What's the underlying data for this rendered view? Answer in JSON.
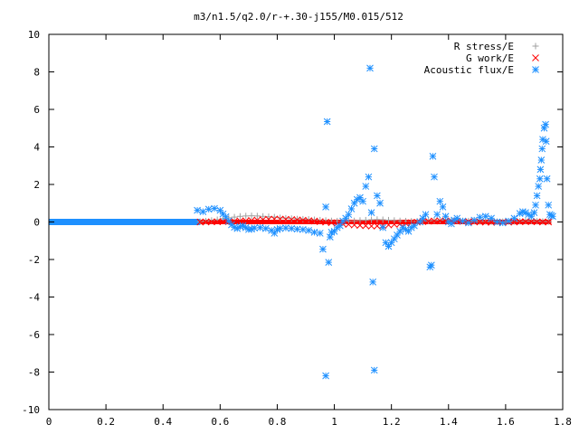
{
  "chart_data": {
    "type": "scatter",
    "title": "m3/n1.5/q2.0/r-+.30-j155/M0.015/512",
    "xlabel": "",
    "ylabel": "",
    "xlim": [
      0,
      1.8
    ],
    "ylim": [
      -10,
      10
    ],
    "x_ticks": [
      "0",
      "0.2",
      "0.4",
      "0.6",
      "0.8",
      "1",
      "1.2",
      "1.4",
      "1.6",
      "1.8"
    ],
    "y_ticks": [
      "10",
      "8",
      "6",
      "4",
      "2",
      "0",
      "-2",
      "-4",
      "-6",
      "-8",
      "-10"
    ],
    "grid": false,
    "legend_position": "top-right",
    "series": [
      {
        "name": "R stress/E",
        "marker": "plus",
        "color": "#a0a0a0",
        "points": [
          [
            0.53,
            0.02
          ],
          [
            0.55,
            0.05
          ],
          [
            0.57,
            0.08
          ],
          [
            0.59,
            0.12
          ],
          [
            0.61,
            0.18
          ],
          [
            0.63,
            0.22
          ],
          [
            0.65,
            0.26
          ],
          [
            0.67,
            0.3
          ],
          [
            0.69,
            0.32
          ],
          [
            0.71,
            0.33
          ],
          [
            0.73,
            0.32
          ],
          [
            0.75,
            0.3
          ],
          [
            0.77,
            0.28
          ],
          [
            0.79,
            0.26
          ],
          [
            0.81,
            0.22
          ],
          [
            0.83,
            0.2
          ],
          [
            0.85,
            0.18
          ],
          [
            0.87,
            0.16
          ],
          [
            0.89,
            0.15
          ],
          [
            0.91,
            0.14
          ],
          [
            0.93,
            0.12
          ],
          [
            0.95,
            0.1
          ],
          [
            0.97,
            0.08
          ],
          [
            0.99,
            0.06
          ],
          [
            1.01,
            0.05
          ],
          [
            1.03,
            0.04
          ],
          [
            1.05,
            0.05
          ],
          [
            1.07,
            0.06
          ],
          [
            1.09,
            0.08
          ],
          [
            1.11,
            0.1
          ],
          [
            1.13,
            0.12
          ],
          [
            1.15,
            0.13
          ],
          [
            1.17,
            0.12
          ],
          [
            1.19,
            0.1
          ],
          [
            1.21,
            0.08
          ],
          [
            1.23,
            0.06
          ],
          [
            1.25,
            0.05
          ],
          [
            1.27,
            0.04
          ],
          [
            1.29,
            0.04
          ],
          [
            1.31,
            0.05
          ],
          [
            1.33,
            0.06
          ],
          [
            1.35,
            0.08
          ],
          [
            1.37,
            0.1
          ],
          [
            1.39,
            0.12
          ],
          [
            1.41,
            0.1
          ],
          [
            1.43,
            0.08
          ],
          [
            1.45,
            0.06
          ],
          [
            1.47,
            0.05
          ],
          [
            1.49,
            0.04
          ],
          [
            1.51,
            0.03
          ],
          [
            1.53,
            0.03
          ],
          [
            1.55,
            0.02
          ],
          [
            1.57,
            0.02
          ],
          [
            1.59,
            0.02
          ],
          [
            1.61,
            0.02
          ],
          [
            1.63,
            0.03
          ],
          [
            1.65,
            0.04
          ],
          [
            1.67,
            0.05
          ],
          [
            1.69,
            0.05
          ],
          [
            1.71,
            0.04
          ],
          [
            1.73,
            0.03
          ],
          [
            1.75,
            0.02
          ]
        ]
      },
      {
        "name": "G work/E",
        "marker": "cross",
        "color": "#ff0000",
        "points": [
          [
            0.53,
            0.0
          ],
          [
            0.55,
            0.0
          ],
          [
            0.57,
            0.01
          ],
          [
            0.59,
            0.01
          ],
          [
            0.61,
            0.02
          ],
          [
            0.63,
            0.03
          ],
          [
            0.65,
            0.04
          ],
          [
            0.67,
            0.05
          ],
          [
            0.69,
            0.06
          ],
          [
            0.71,
            0.08
          ],
          [
            0.73,
            0.1
          ],
          [
            0.75,
            0.12
          ],
          [
            0.77,
            0.14
          ],
          [
            0.79,
            0.15
          ],
          [
            0.81,
            0.15
          ],
          [
            0.83,
            0.14
          ],
          [
            0.85,
            0.13
          ],
          [
            0.87,
            0.11
          ],
          [
            0.89,
            0.09
          ],
          [
            0.91,
            0.07
          ],
          [
            0.93,
            0.05
          ],
          [
            0.95,
            0.02
          ],
          [
            0.97,
            -0.01
          ],
          [
            0.99,
            -0.04
          ],
          [
            1.01,
            -0.07
          ],
          [
            1.03,
            -0.1
          ],
          [
            1.05,
            -0.13
          ],
          [
            1.07,
            -0.16
          ],
          [
            1.09,
            -0.18
          ],
          [
            1.11,
            -0.2
          ],
          [
            1.13,
            -0.22
          ],
          [
            1.15,
            -0.21
          ],
          [
            1.17,
            -0.19
          ],
          [
            1.19,
            -0.16
          ],
          [
            1.21,
            -0.13
          ],
          [
            1.23,
            -0.1
          ],
          [
            1.25,
            -0.07
          ],
          [
            1.27,
            -0.04
          ],
          [
            1.29,
            -0.01
          ],
          [
            1.31,
            0.02
          ],
          [
            1.33,
            0.04
          ],
          [
            1.35,
            0.05
          ],
          [
            1.37,
            0.06
          ],
          [
            1.39,
            0.06
          ],
          [
            1.41,
            0.05
          ],
          [
            1.43,
            0.04
          ],
          [
            1.45,
            0.03
          ],
          [
            1.47,
            0.02
          ],
          [
            1.49,
            0.01
          ],
          [
            1.51,
            0.0
          ],
          [
            1.53,
            -0.01
          ],
          [
            1.55,
            -0.02
          ],
          [
            1.57,
            -0.02
          ],
          [
            1.59,
            -0.02
          ],
          [
            1.61,
            -0.01
          ],
          [
            1.63,
            0.0
          ],
          [
            1.65,
            0.01
          ],
          [
            1.67,
            0.02
          ],
          [
            1.69,
            0.02
          ],
          [
            1.71,
            0.01
          ],
          [
            1.73,
            0.0
          ],
          [
            1.75,
            0.0
          ]
        ]
      },
      {
        "name": "Acoustic flux/E",
        "marker": "star",
        "color": "#1e90ff",
        "points": [
          [
            0.52,
            0.62
          ],
          [
            0.54,
            0.55
          ],
          [
            0.56,
            0.68
          ],
          [
            0.58,
            0.72
          ],
          [
            0.6,
            0.62
          ],
          [
            0.61,
            0.42
          ],
          [
            0.62,
            0.28
          ],
          [
            0.63,
            0.05
          ],
          [
            0.64,
            -0.15
          ],
          [
            0.65,
            -0.28
          ],
          [
            0.66,
            -0.35
          ],
          [
            0.67,
            -0.25
          ],
          [
            0.68,
            -0.2
          ],
          [
            0.69,
            -0.3
          ],
          [
            0.7,
            -0.4
          ],
          [
            0.71,
            -0.38
          ],
          [
            0.72,
            -0.32
          ],
          [
            0.74,
            -0.3
          ],
          [
            0.76,
            -0.35
          ],
          [
            0.78,
            -0.45
          ],
          [
            0.79,
            -0.6
          ],
          [
            0.8,
            -0.4
          ],
          [
            0.81,
            -0.35
          ],
          [
            0.83,
            -0.32
          ],
          [
            0.85,
            -0.35
          ],
          [
            0.87,
            -0.38
          ],
          [
            0.89,
            -0.4
          ],
          [
            0.91,
            -0.45
          ],
          [
            0.93,
            -0.55
          ],
          [
            0.95,
            -0.6
          ],
          [
            0.96,
            -1.45
          ],
          [
            0.97,
            0.8
          ],
          [
            0.97,
            -8.2
          ],
          [
            0.975,
            5.35
          ],
          [
            0.98,
            -2.15
          ],
          [
            0.985,
            -0.8
          ],
          [
            0.99,
            -0.55
          ],
          [
            1.0,
            -0.5
          ],
          [
            1.01,
            -0.3
          ],
          [
            1.02,
            -0.2
          ],
          [
            1.03,
            0.05
          ],
          [
            1.04,
            0.2
          ],
          [
            1.05,
            0.4
          ],
          [
            1.06,
            0.7
          ],
          [
            1.07,
            1.0
          ],
          [
            1.08,
            1.2
          ],
          [
            1.09,
            1.3
          ],
          [
            1.1,
            1.1
          ],
          [
            1.11,
            1.9
          ],
          [
            1.12,
            2.4
          ],
          [
            1.125,
            8.2
          ],
          [
            1.13,
            0.5
          ],
          [
            1.135,
            -3.2
          ],
          [
            1.14,
            3.9
          ],
          [
            1.14,
            -7.9
          ],
          [
            1.15,
            1.4
          ],
          [
            1.16,
            1.0
          ],
          [
            1.17,
            -0.3
          ],
          [
            1.18,
            -1.1
          ],
          [
            1.19,
            -1.3
          ],
          [
            1.2,
            -1.1
          ],
          [
            1.21,
            -0.9
          ],
          [
            1.22,
            -0.7
          ],
          [
            1.23,
            -0.5
          ],
          [
            1.24,
            -0.3
          ],
          [
            1.25,
            -0.4
          ],
          [
            1.26,
            -0.5
          ],
          [
            1.27,
            -0.3
          ],
          [
            1.28,
            -0.2
          ],
          [
            1.3,
            0.0
          ],
          [
            1.31,
            0.2
          ],
          [
            1.32,
            0.4
          ],
          [
            1.335,
            -2.4
          ],
          [
            1.34,
            -2.3
          ],
          [
            1.345,
            3.5
          ],
          [
            1.35,
            2.4
          ],
          [
            1.36,
            0.4
          ],
          [
            1.37,
            1.1
          ],
          [
            1.38,
            0.8
          ],
          [
            1.39,
            0.3
          ],
          [
            1.4,
            0.0
          ],
          [
            1.41,
            -0.1
          ],
          [
            1.42,
            0.1
          ],
          [
            1.43,
            0.2
          ],
          [
            1.45,
            0.05
          ],
          [
            1.47,
            -0.05
          ],
          [
            1.49,
            0.1
          ],
          [
            1.51,
            0.25
          ],
          [
            1.53,
            0.3
          ],
          [
            1.55,
            0.2
          ],
          [
            1.57,
            0.0
          ],
          [
            1.59,
            -0.05
          ],
          [
            1.61,
            0.05
          ],
          [
            1.63,
            0.2
          ],
          [
            1.65,
            0.45
          ],
          [
            1.66,
            0.55
          ],
          [
            1.67,
            0.5
          ],
          [
            1.68,
            0.4
          ],
          [
            1.69,
            0.3
          ],
          [
            1.7,
            0.5
          ],
          [
            1.705,
            0.9
          ],
          [
            1.71,
            1.4
          ],
          [
            1.715,
            1.9
          ],
          [
            1.72,
            2.3
          ],
          [
            1.722,
            2.8
          ],
          [
            1.725,
            3.3
          ],
          [
            1.728,
            3.9
          ],
          [
            1.73,
            4.4
          ],
          [
            1.735,
            5.0
          ],
          [
            1.74,
            5.2
          ],
          [
            1.742,
            4.3
          ],
          [
            1.745,
            2.3
          ],
          [
            1.75,
            0.9
          ],
          [
            1.755,
            0.4
          ],
          [
            1.76,
            0.35
          ],
          [
            1.765,
            0.3
          ]
        ]
      }
    ],
    "baseline": {
      "x_from": 0,
      "x_to": 1.8,
      "y": 0
    }
  }
}
